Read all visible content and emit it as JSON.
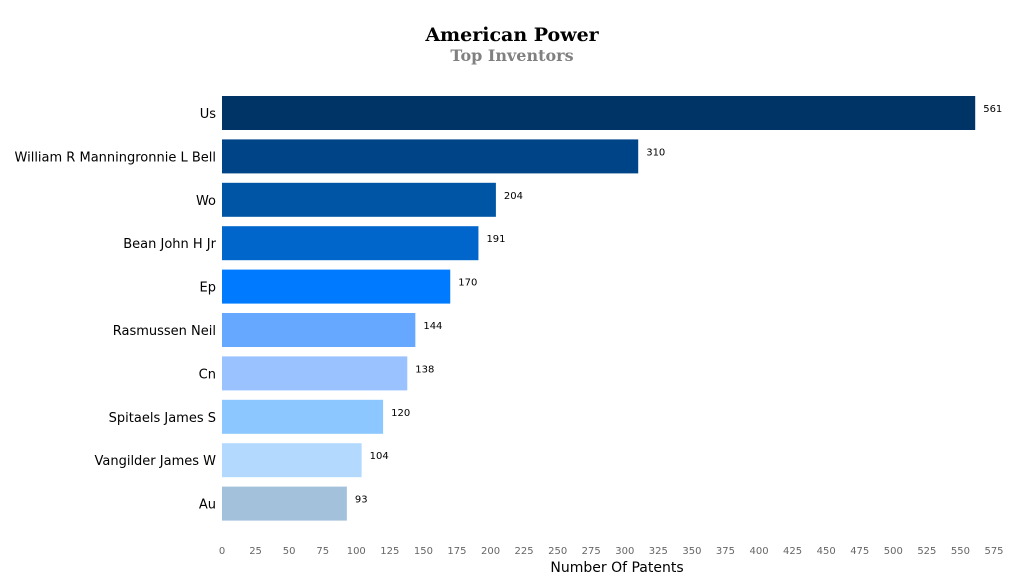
{
  "chart_data": {
    "type": "bar",
    "orientation": "horizontal",
    "title": "American Power",
    "subtitle": "Top Inventors",
    "xlabel": "Number Of Patents",
    "ylabel": "",
    "xlim": [
      0,
      575
    ],
    "x_ticks": [
      0,
      25,
      50,
      75,
      100,
      125,
      150,
      175,
      200,
      225,
      250,
      275,
      300,
      325,
      350,
      375,
      400,
      425,
      450,
      475,
      500,
      525,
      550,
      575
    ],
    "grid": false,
    "categories": [
      "Us",
      "William R Manningronnie L Bell",
      "Wo",
      "Bean John H Jr",
      "Ep",
      "Rasmussen Neil",
      "Cn",
      "Spitaels James S",
      "Vangilder James W",
      "Au"
    ],
    "values": [
      561,
      310,
      204,
      191,
      170,
      144,
      138,
      120,
      104,
      93
    ],
    "colors": [
      "#003366",
      "#004488",
      "#0055a5",
      "#0066cc",
      "#007bff",
      "#66a8ff",
      "#99c2ff",
      "#8cc8ff",
      "#b3d9ff",
      "#a3c1db"
    ]
  }
}
